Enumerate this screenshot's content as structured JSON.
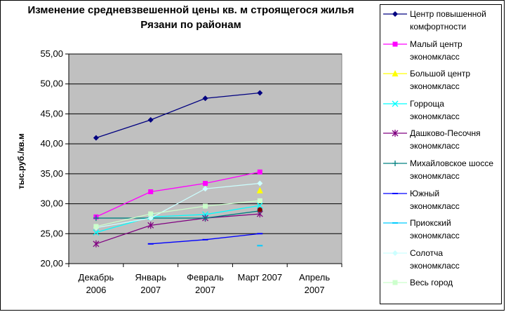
{
  "chart_data": {
    "type": "line",
    "title": "Изменение средневзвешенной цены кв. м строящегося жилья\nРязани по районам",
    "ylabel": "тыс.руб./кв.м",
    "xlabel": "",
    "categories": [
      "Декабрь\n2006",
      "Январь\n2007",
      "Февраль\n2007",
      "Март 2007",
      "Апрель\n2007"
    ],
    "ylim": [
      20,
      55
    ],
    "yticks": [
      "20,00",
      "25,00",
      "30,00",
      "35,00",
      "40,00",
      "45,00",
      "50,00",
      "55,00"
    ],
    "grid": "horizontal",
    "plot_background": "#c0c0c0",
    "legend_position": "right",
    "series": [
      {
        "name": "Центр повышенной\nкомфортности",
        "color": "#000080",
        "marker": "diamond",
        "values": [
          41.0,
          44.0,
          47.6,
          48.5,
          null
        ]
      },
      {
        "name": "Малый центр\nэкономкласс",
        "color": "#ff00ff",
        "marker": "square",
        "values": [
          27.8,
          32.0,
          33.4,
          35.3,
          null
        ]
      },
      {
        "name": "Большой центр\nэкономкласс",
        "color": "#ffff00",
        "marker": "triangle",
        "values": [
          null,
          null,
          null,
          32.2,
          null
        ]
      },
      {
        "name": "Горроща\nэкономкласс",
        "color": "#00ffff",
        "marker": "x",
        "values": [
          25.2,
          27.8,
          28.2,
          29.7,
          null
        ]
      },
      {
        "name": "Дашково-Песочня\nэкономкласс",
        "color": "#800080",
        "marker": "star",
        "values": [
          23.3,
          26.4,
          27.6,
          28.3,
          null
        ]
      },
      {
        "name": "Михайловское шоссе\nэкономкласс",
        "color": "#008080",
        "marker": "plus",
        "values": [
          27.6,
          27.6,
          27.6,
          28.8,
          null
        ]
      },
      {
        "name": "Южный\nэкономкласс",
        "color": "#0000ff",
        "marker": "dash",
        "values": [
          null,
          23.3,
          24.0,
          25.0,
          null
        ]
      },
      {
        "name": "Приокский\nэкономкласс",
        "color": "#00ccff",
        "marker": "dash",
        "values": [
          null,
          null,
          null,
          23.0,
          null
        ]
      },
      {
        "name": "Солотча\nэкономкласс",
        "color": "#ccffff",
        "marker": "diamond",
        "values": [
          26.0,
          27.6,
          32.5,
          33.4,
          null
        ]
      },
      {
        "name": "Весь город",
        "color": "#ccffcc",
        "marker": "square",
        "values": [
          26.2,
          28.3,
          29.6,
          30.5,
          null
        ]
      }
    ],
    "extra_points": [
      {
        "series": "Михайловское шоссе",
        "category": "Март 2007",
        "value": 29.0,
        "color": "#800000"
      }
    ]
  }
}
